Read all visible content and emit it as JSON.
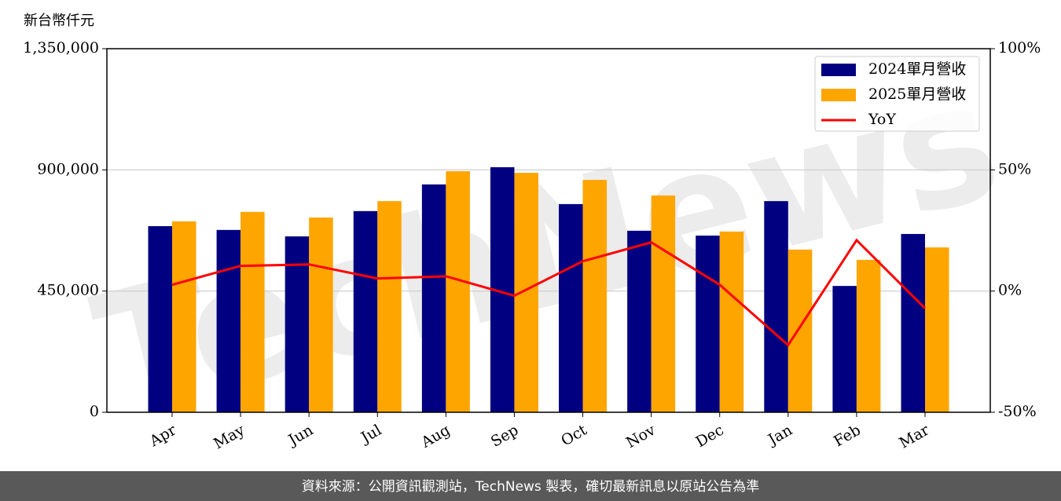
{
  "chart_data": {
    "type": "bar_line",
    "y_label": "新台幣仟元",
    "watermark": "TechNews",
    "source": "資料來源：公開資訊觀測站，TechNews 製表，確切最新訊息以原站公告為準",
    "categories": [
      "Apr",
      "May",
      "Jun",
      "Jul",
      "Aug",
      "Sep",
      "Oct",
      "Nov",
      "Dec",
      "Jan",
      "Feb",
      "Mar"
    ],
    "series": [
      {
        "name": "2024單月營收",
        "color": "#000080",
        "values": [
          691000,
          677000,
          653000,
          747000,
          846000,
          910000,
          773000,
          674000,
          656000,
          784000,
          469000,
          662000
        ]
      },
      {
        "name": "2025單月營收",
        "color": "#ffa500",
        "values": [
          709000,
          744000,
          723000,
          784000,
          895000,
          889000,
          863000,
          805000,
          671000,
          604000,
          566000,
          612000
        ]
      },
      {
        "name": "YoY",
        "color": "#ff0000",
        "axis": "y2",
        "type": "line",
        "values": [
          2.6,
          10.4,
          11.0,
          5.2,
          6.1,
          -1.9,
          12.3,
          20.1,
          2.6,
          -22.3,
          21.0,
          -7.1
        ]
      }
    ],
    "ylim": [
      0,
      1350000
    ],
    "yticks": [
      0,
      {
        "value": 450000,
        "label": "450,000"
      },
      {
        "value": 900000,
        "label": "900,000"
      },
      {
        "value": 1350000,
        "label": "1,350,000"
      }
    ],
    "y2lim": [
      -50,
      100
    ],
    "y2ticks": [
      {
        "value": -50,
        "label": "-50%"
      },
      {
        "value": 0,
        "label": "0%"
      },
      {
        "value": 50,
        "label": "50%"
      },
      {
        "value": 100,
        "label": "100%"
      }
    ],
    "grid": true,
    "legend": "upper right"
  }
}
